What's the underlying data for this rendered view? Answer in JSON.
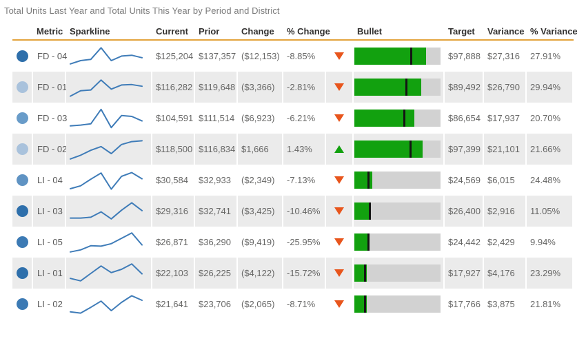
{
  "chart_data": {
    "type": "table",
    "title": "Total Units Last Year and Total Units This Year by Period and District",
    "columns": [
      "Metric",
      "Sparkline",
      "Current",
      "Prior",
      "Change",
      "% Change",
      "Bullet",
      "Target",
      "Variance",
      "% Variance"
    ],
    "bullet_scale_max": 150000,
    "sparkline_scale": "relative 0-100, estimated from pixels",
    "rows": [
      {
        "metric": "FD - 04",
        "dot_color": "#2e6fab",
        "sparkline": [
          14,
          30,
          36,
          92,
          30,
          52,
          56,
          44
        ],
        "current": "$125,204",
        "prior": "$137,357",
        "change": "($12,153)",
        "pct_change": "-8.85%",
        "direction": "down",
        "current_value": 125204,
        "target_value": 97888,
        "target": "$97,888",
        "variance": "$27,316",
        "pct_variance": "27.91%"
      },
      {
        "metric": "FD - 01",
        "dot_color": "#a9c2dc",
        "sparkline": [
          8,
          34,
          38,
          86,
          42,
          62,
          64,
          56
        ],
        "current": "$116,282",
        "prior": "$119,648",
        "change": "($3,366)",
        "pct_change": "-2.81%",
        "direction": "down",
        "current_value": 116282,
        "target_value": 89492,
        "target": "$89,492",
        "variance": "$26,790",
        "pct_variance": "29.94%"
      },
      {
        "metric": "FD - 03",
        "dot_color": "#699cc9",
        "sparkline": [
          14,
          18,
          24,
          94,
          6,
          64,
          60,
          38
        ],
        "current": "$104,591",
        "prior": "$111,514",
        "change": "($6,923)",
        "pct_change": "-6.21%",
        "direction": "down",
        "current_value": 104591,
        "target_value": 86654,
        "target": "$86,654",
        "variance": "$17,937",
        "pct_variance": "20.70%"
      },
      {
        "metric": "FD - 02",
        "dot_color": "#a9c2dc",
        "sparkline": [
          4,
          22,
          46,
          64,
          30,
          74,
          88,
          92
        ],
        "current": "$118,500",
        "prior": "$116,834",
        "change": "$1,666",
        "pct_change": "1.43%",
        "direction": "up",
        "current_value": 118500,
        "target_value": 97399,
        "target": "$97,399",
        "variance": "$21,101",
        "pct_variance": "21.66%"
      },
      {
        "metric": "LI - 04",
        "dot_color": "#5f93c3",
        "sparkline": [
          10,
          24,
          56,
          86,
          8,
          70,
          88,
          58
        ],
        "current": "$30,584",
        "prior": "$32,933",
        "change": "($2,349)",
        "pct_change": "-7.13%",
        "direction": "down",
        "current_value": 30584,
        "target_value": 24569,
        "target": "$24,569",
        "variance": "$6,015",
        "pct_variance": "24.48%"
      },
      {
        "metric": "LI - 03",
        "dot_color": "#2e6fab",
        "sparkline": [
          18,
          18,
          22,
          48,
          14,
          56,
          92,
          54
        ],
        "current": "$29,316",
        "prior": "$32,741",
        "change": "($3,425)",
        "pct_change": "-10.46%",
        "direction": "down",
        "current_value": 29316,
        "target_value": 26400,
        "target": "$26,400",
        "variance": "$2,916",
        "pct_variance": "11.05%"
      },
      {
        "metric": "LI - 05",
        "dot_color": "#3c7ab4",
        "sparkline": [
          4,
          14,
          34,
          32,
          44,
          70,
          96,
          38
        ],
        "current": "$26,871",
        "prior": "$36,290",
        "change": "($9,419)",
        "pct_change": "-25.95%",
        "direction": "down",
        "current_value": 26871,
        "target_value": 24442,
        "target": "$24,442",
        "variance": "$2,429",
        "pct_variance": "9.94%"
      },
      {
        "metric": "LI - 01",
        "dot_color": "#2e6fab",
        "sparkline": [
          26,
          14,
          50,
          86,
          54,
          70,
          96,
          48
        ],
        "current": "$22,103",
        "prior": "$26,225",
        "change": "($4,122)",
        "pct_change": "-15.72%",
        "direction": "down",
        "current_value": 22103,
        "target_value": 17927,
        "target": "$17,927",
        "variance": "$4,176",
        "pct_variance": "23.29%"
      },
      {
        "metric": "LI - 02",
        "dot_color": "#3c7ab4",
        "sparkline": [
          14,
          8,
          36,
          66,
          20,
          60,
          92,
          70
        ],
        "current": "$21,641",
        "prior": "$23,706",
        "change": "($2,065)",
        "pct_change": "-8.71%",
        "direction": "down",
        "current_value": 21641,
        "target_value": 17766,
        "target": "$17,766",
        "variance": "$3,875",
        "pct_variance": "21.81%"
      }
    ]
  },
  "colors": {
    "sparkline": "#3f7cb8",
    "bullet_fill": "#12a10f",
    "bullet_track": "#d2d2d2",
    "bullet_marker": "#141414",
    "arrow_down": "#e8551c",
    "arrow_up": "#12a10f",
    "header_rule": "#e3a33c",
    "alt_row": "#ebebeb"
  }
}
